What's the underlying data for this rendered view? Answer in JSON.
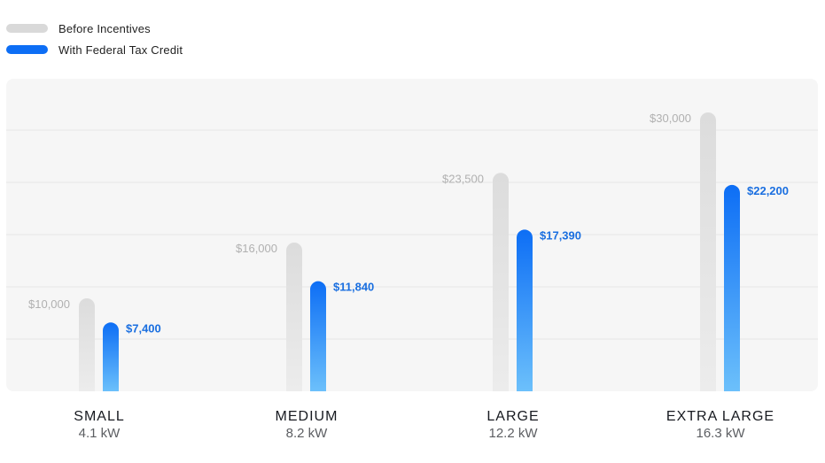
{
  "legend": {
    "items": [
      {
        "label": "Before Incentives",
        "color": "#d9d9d9"
      },
      {
        "label": "With Federal Tax Credit",
        "color": "#0d6ef5"
      }
    ]
  },
  "chart_data": {
    "type": "bar",
    "title": "",
    "xlabel": "",
    "ylabel": "",
    "ylim": [
      0,
      30000
    ],
    "grid": true,
    "legend_position": "top-left",
    "categories": [
      "SMALL",
      "MEDIUM",
      "LARGE",
      "EXTRA LARGE"
    ],
    "subcategories": [
      "4.1 kW",
      "8.2 kW",
      "12.2 kW",
      "16.3 kW"
    ],
    "series": [
      {
        "name": "Before Incentives",
        "color": "#d9d9d9",
        "values": [
          10000,
          16000,
          23500,
          30000
        ],
        "labels": [
          "$10,000",
          "$16,000",
          "$23,500",
          "$30,000"
        ]
      },
      {
        "name": "With Federal Tax Credit",
        "color": "#0d6ef5",
        "values": [
          7400,
          11840,
          17390,
          22200
        ],
        "labels": [
          "$7,400",
          "$11,840",
          "$17,390",
          "$22,200"
        ]
      }
    ]
  }
}
